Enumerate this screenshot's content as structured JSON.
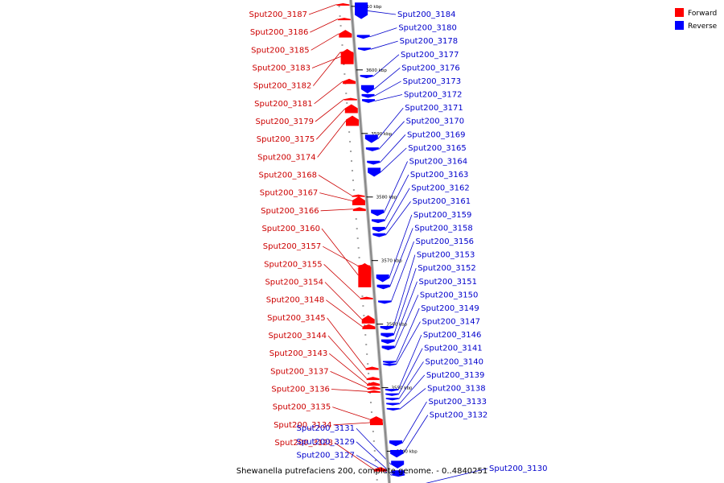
{
  "title": "Shewanella putrefaciens 200, complete genome. - 0..4840251",
  "legend": [
    {
      "label": "Forward",
      "color": "#ff0000"
    },
    {
      "label": "Reverse",
      "color": "#0000ff"
    }
  ],
  "colors": {
    "forward": "#ff0000",
    "reverse": "#0000ff",
    "axis": "#888888",
    "ink": "#000000"
  },
  "axis": {
    "unit": "kbp",
    "top_kbp": 3611,
    "bottom_kbp": 3535,
    "ticks": [
      {
        "label": "3610 kbp",
        "kbp": 3610
      },
      {
        "label": "3600 kbp",
        "kbp": 3600
      },
      {
        "label": "3590 kbp",
        "kbp": 3590
      },
      {
        "label": "3580 kbp",
        "kbp": 3580
      },
      {
        "label": "3570 kbp",
        "kbp": 3570
      },
      {
        "label": "3560 kbp",
        "kbp": 3560
      },
      {
        "label": "3550 kbp",
        "kbp": 3550
      },
      {
        "label": "3540 kbp",
        "kbp": 3540
      }
    ]
  },
  "genes": {
    "forward": [
      {
        "name": "Sput200_3187",
        "kbp": 3610.5,
        "len": 0.2
      },
      {
        "name": "Sput200_3186",
        "kbp": 3608.2,
        "len": 0.3
      },
      {
        "name": "Sput200_3185",
        "kbp": 3606.3,
        "len": 1.2
      },
      {
        "name": "Sput200_3183",
        "kbp": 3603.3,
        "len": 2.4
      },
      {
        "name": "Sput200_3182",
        "kbp": 3603.0,
        "len": 0.2
      },
      {
        "name": "Sput200_3181",
        "kbp": 3598.6,
        "len": 0.8
      },
      {
        "name": "Sput200_3179",
        "kbp": 3595.6,
        "len": 0.2
      },
      {
        "name": "Sput200_3175",
        "kbp": 3594.6,
        "len": 1.4
      },
      {
        "name": "Sput200_3174",
        "kbp": 3592.8,
        "len": 1.6
      },
      {
        "name": "Sput200_3168",
        "kbp": 3580.4,
        "len": 0.3
      },
      {
        "name": "Sput200_3167",
        "kbp": 3580.1,
        "len": 1.4
      },
      {
        "name": "Sput200_3166",
        "kbp": 3578.4,
        "len": 0.6
      },
      {
        "name": "Sput200_3160",
        "kbp": 3569.6,
        "len": 3.8
      },
      {
        "name": "Sput200_3157",
        "kbp": 3569.4,
        "len": 0.3
      },
      {
        "name": "Sput200_3155",
        "kbp": 3564.3,
        "len": 0.4
      },
      {
        "name": "Sput200_3154",
        "kbp": 3561.4,
        "len": 1.3
      },
      {
        "name": "Sput200_3148",
        "kbp": 3560.0,
        "len": 0.8
      },
      {
        "name": "Sput200_3145",
        "kbp": 3553.3,
        "len": 0.5
      },
      {
        "name": "Sput200_3144",
        "kbp": 3551.7,
        "len": 0.5
      },
      {
        "name": "Sput200_3143",
        "kbp": 3550.9,
        "len": 0.6
      },
      {
        "name": "Sput200_3137",
        "kbp": 3550.2,
        "len": 0.5
      },
      {
        "name": "Sput200_3136",
        "kbp": 3549.6,
        "len": 0.4
      },
      {
        "name": "Sput200_3135",
        "kbp": 3545.5,
        "len": 1.0
      },
      {
        "name": "Sput200_3134",
        "kbp": 3544.9,
        "len": 0.8
      },
      {
        "name": "Sput200_3128",
        "kbp": 3537.5,
        "len": 0.7
      }
    ],
    "reverse": [
      {
        "name": "Sput200_3184",
        "kbp": 3610.6,
        "len": 2.6
      },
      {
        "name": "Sput200_3180",
        "kbp": 3605.5,
        "len": 0.6
      },
      {
        "name": "Sput200_3178",
        "kbp": 3603.5,
        "len": 0.5
      },
      {
        "name": "Sput200_3177",
        "kbp": 3599.2,
        "len": 0.5
      },
      {
        "name": "Sput200_3176",
        "kbp": 3597.6,
        "len": 1.3
      },
      {
        "name": "Sput200_3173",
        "kbp": 3596.2,
        "len": 0.6
      },
      {
        "name": "Sput200_3172",
        "kbp": 3595.4,
        "len": 0.6
      },
      {
        "name": "Sput200_3171",
        "kbp": 3589.8,
        "len": 1.3
      },
      {
        "name": "Sput200_3170",
        "kbp": 3587.8,
        "len": 0.6
      },
      {
        "name": "Sput200_3169",
        "kbp": 3585.7,
        "len": 0.6
      },
      {
        "name": "Sput200_3165",
        "kbp": 3584.6,
        "len": 1.4
      },
      {
        "name": "Sput200_3164",
        "kbp": 3578.0,
        "len": 1.0
      },
      {
        "name": "Sput200_3163",
        "kbp": 3576.5,
        "len": 0.6
      },
      {
        "name": "Sput200_3162",
        "kbp": 3575.3,
        "len": 0.8
      },
      {
        "name": "Sput200_3161",
        "kbp": 3574.3,
        "len": 0.6
      },
      {
        "name": "Sput200_3159",
        "kbp": 3567.8,
        "len": 1.2
      },
      {
        "name": "Sput200_3158",
        "kbp": 3566.2,
        "len": 0.7
      },
      {
        "name": "Sput200_3156",
        "kbp": 3563.7,
        "len": 0.5
      },
      {
        "name": "Sput200_3153",
        "kbp": 3559.7,
        "len": 0.6
      },
      {
        "name": "Sput200_3152",
        "kbp": 3558.6,
        "len": 0.7
      },
      {
        "name": "Sput200_3151",
        "kbp": 3557.6,
        "len": 0.7
      },
      {
        "name": "Sput200_3150",
        "kbp": 3556.6,
        "len": 0.7
      },
      {
        "name": "Sput200_3149",
        "kbp": 3554.2,
        "len": 0.4
      },
      {
        "name": "Sput200_3147",
        "kbp": 3553.8,
        "len": 0.3
      },
      {
        "name": "Sput200_3146",
        "kbp": 3549.8,
        "len": 0.4
      },
      {
        "name": "Sput200_3141",
        "kbp": 3549.1,
        "len": 0.4
      },
      {
        "name": "Sput200_3140",
        "kbp": 3548.4,
        "len": 0.4
      },
      {
        "name": "Sput200_3139",
        "kbp": 3547.6,
        "len": 0.4
      },
      {
        "name": "Sput200_3138",
        "kbp": 3546.8,
        "len": 0.4
      },
      {
        "name": "Sput200_3133",
        "kbp": 3541.7,
        "len": 0.9
      },
      {
        "name": "Sput200_3132",
        "kbp": 3540.2,
        "len": 1.2
      },
      {
        "name": "Sput200_3131",
        "kbp": 3538.5,
        "len": 1.2
      },
      {
        "name": "Sput200_3129",
        "kbp": 3537.0,
        "len": 1.0
      },
      {
        "name": "Sput200_3127",
        "kbp": 3536.4,
        "len": 0.4
      },
      {
        "name": "Sput200_3130",
        "kbp": 3534.7,
        "len": 1.0
      }
    ]
  }
}
